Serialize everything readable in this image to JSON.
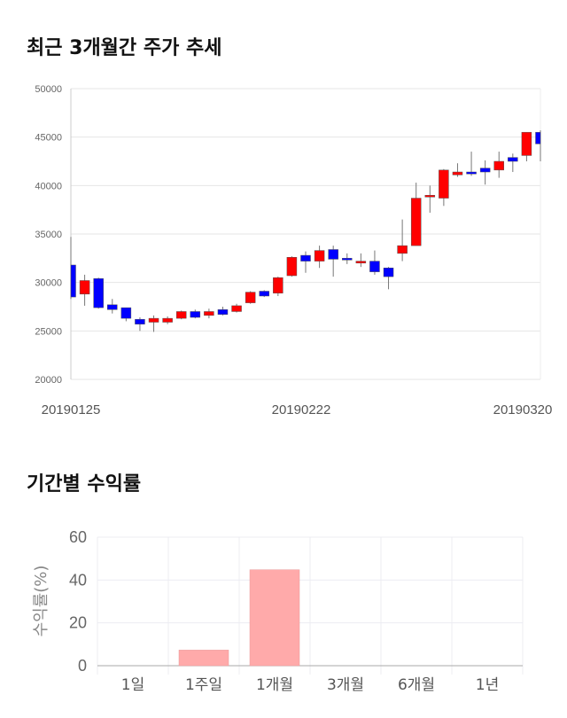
{
  "titles": {
    "price_trend": "최근 3개월간 주가 추세",
    "period_returns": "기간별 수익률"
  },
  "chart_data": [
    {
      "type": "candlestick",
      "title": "최근 3개월간 주가 추세",
      "y_ticks": [
        "50000",
        "45000",
        "40000",
        "35000",
        "30000",
        "25000",
        "20000"
      ],
      "ylim": [
        20000,
        50000
      ],
      "x_labels": [
        "20190125",
        "20190222",
        "20190320"
      ],
      "grid": true,
      "up_color": "#ff0000",
      "down_color": "#0000ff",
      "candles": [
        {
          "open": 31800,
          "close": 28500,
          "high": 34700,
          "low": 28300
        },
        {
          "open": 28800,
          "close": 30200,
          "high": 30800,
          "low": 27600
        },
        {
          "open": 30400,
          "close": 27400,
          "high": 30500,
          "low": 27300
        },
        {
          "open": 27700,
          "close": 27200,
          "high": 28300,
          "low": 26800
        },
        {
          "open": 27400,
          "close": 26300,
          "high": 27400,
          "low": 26000
        },
        {
          "open": 26200,
          "close": 25700,
          "high": 26400,
          "low": 25000
        },
        {
          "open": 25900,
          "close": 26300,
          "high": 26600,
          "low": 24900
        },
        {
          "open": 25900,
          "close": 26300,
          "high": 26500,
          "low": 25700
        },
        {
          "open": 26300,
          "close": 27000,
          "high": 27100,
          "low": 26200
        },
        {
          "open": 27000,
          "close": 26400,
          "high": 27200,
          "low": 26300
        },
        {
          "open": 26600,
          "close": 27000,
          "high": 27300,
          "low": 26300
        },
        {
          "open": 27200,
          "close": 26700,
          "high": 27500,
          "low": 26600
        },
        {
          "open": 27000,
          "close": 27600,
          "high": 27800,
          "low": 26900
        },
        {
          "open": 27900,
          "close": 29000,
          "high": 29100,
          "low": 27800
        },
        {
          "open": 29100,
          "close": 28600,
          "high": 29200,
          "low": 28500
        },
        {
          "open": 28900,
          "close": 30500,
          "high": 30600,
          "low": 28600
        },
        {
          "open": 30700,
          "close": 32600,
          "high": 32700,
          "low": 30600
        },
        {
          "open": 32800,
          "close": 32200,
          "high": 33200,
          "low": 31000
        },
        {
          "open": 32200,
          "close": 33300,
          "high": 33800,
          "low": 31500
        },
        {
          "open": 33400,
          "close": 32400,
          "high": 33800,
          "low": 30600
        },
        {
          "open": 32500,
          "close": 32400,
          "high": 33000,
          "low": 31900
        },
        {
          "open": 32000,
          "close": 32200,
          "high": 33000,
          "low": 31600
        },
        {
          "open": 32200,
          "close": 31100,
          "high": 33300,
          "low": 30800
        },
        {
          "open": 31500,
          "close": 30600,
          "high": 31600,
          "low": 29300
        },
        {
          "open": 33000,
          "close": 33800,
          "high": 36500,
          "low": 32200
        },
        {
          "open": 33800,
          "close": 38700,
          "high": 40300,
          "low": 33800
        },
        {
          "open": 38900,
          "close": 39000,
          "high": 40000,
          "low": 37200
        },
        {
          "open": 38700,
          "close": 41600,
          "high": 41700,
          "low": 37900
        },
        {
          "open": 41100,
          "close": 41400,
          "high": 42300,
          "low": 40900
        },
        {
          "open": 41400,
          "close": 41200,
          "high": 43500,
          "low": 41000
        },
        {
          "open": 41800,
          "close": 41400,
          "high": 42600,
          "low": 40100
        },
        {
          "open": 41600,
          "close": 42500,
          "high": 43500,
          "low": 40800
        },
        {
          "open": 42900,
          "close": 42500,
          "high": 43300,
          "low": 41400
        },
        {
          "open": 43100,
          "close": 45500,
          "high": 45500,
          "low": 42500
        },
        {
          "open": 45500,
          "close": 44300,
          "high": 45700,
          "low": 42500
        }
      ]
    },
    {
      "type": "bar",
      "title": "기간별 수익률",
      "ylabel": "수익률(%)",
      "categories": [
        "1일",
        "1주일",
        "1개월",
        "3개월",
        "6개월",
        "1년"
      ],
      "values": [
        0,
        7.3,
        44.8,
        0,
        0,
        0
      ],
      "y_ticks": [
        "60",
        "40",
        "20",
        "0"
      ],
      "ylim": [
        0,
        60
      ],
      "bar_color": "#ffaaaa",
      "grid": true
    }
  ]
}
